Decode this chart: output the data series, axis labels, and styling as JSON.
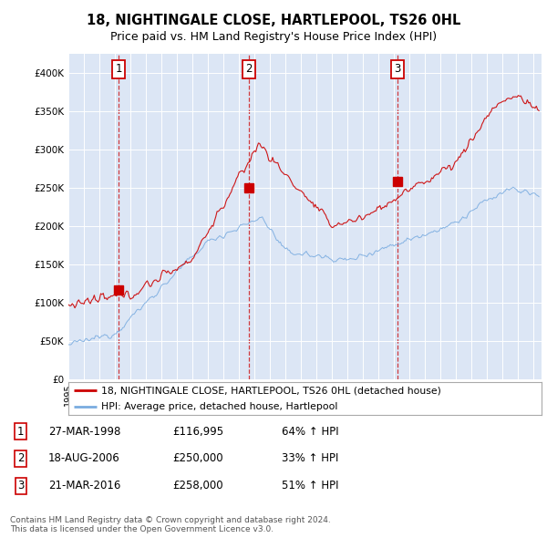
{
  "title1": "18, NIGHTINGALE CLOSE, HARTLEPOOL, TS26 0HL",
  "title2": "Price paid vs. HM Land Registry's House Price Index (HPI)",
  "background_color": "#dce6f5",
  "red_color": "#cc0000",
  "blue_color": "#7aace0",
  "sales": [
    {
      "date_num": 1998.23,
      "price": 116995,
      "label": "1"
    },
    {
      "date_num": 2006.63,
      "price": 250000,
      "label": "2"
    },
    {
      "date_num": 2016.22,
      "price": 258000,
      "label": "3"
    }
  ],
  "legend_entries": [
    "18, NIGHTINGALE CLOSE, HARTLEPOOL, TS26 0HL (detached house)",
    "HPI: Average price, detached house, Hartlepool"
  ],
  "table_rows": [
    {
      "num": "1",
      "date": "27-MAR-1998",
      "price": "£116,995",
      "hpi": "64% ↑ HPI"
    },
    {
      "num": "2",
      "date": "18-AUG-2006",
      "price": "£250,000",
      "hpi": "33% ↑ HPI"
    },
    {
      "num": "3",
      "date": "21-MAR-2016",
      "price": "£258,000",
      "hpi": "51% ↑ HPI"
    }
  ],
  "footer": "Contains HM Land Registry data © Crown copyright and database right 2024.\nThis data is licensed under the Open Government Licence v3.0.",
  "ylim": [
    0,
    420000
  ],
  "xlim_start": 1995.0,
  "xlim_end": 2025.5
}
